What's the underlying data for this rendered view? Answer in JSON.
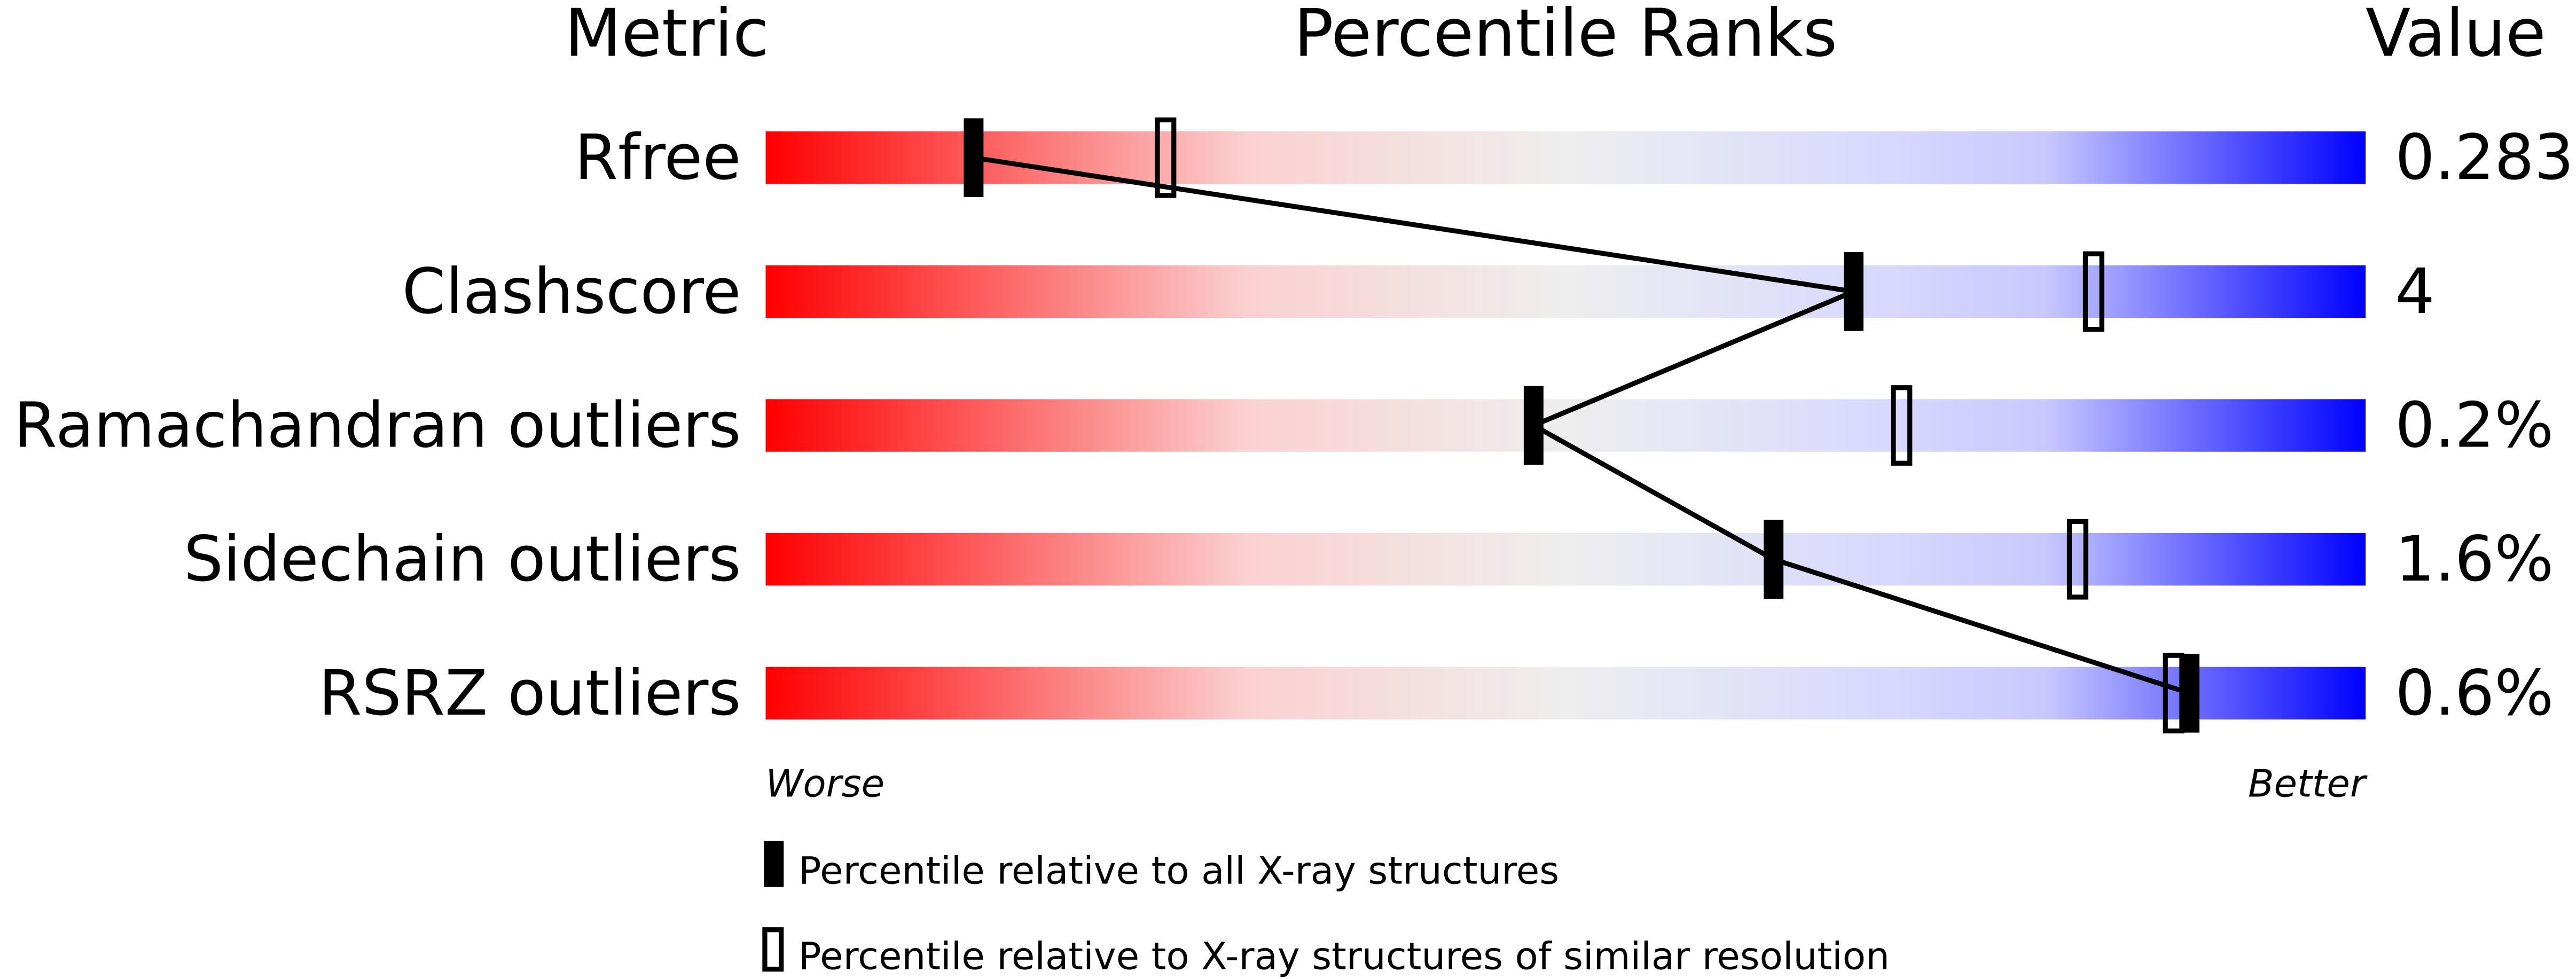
{
  "chart_data": {
    "type": "percentile-bar",
    "headers": {
      "metric": "Metric",
      "ranks": "Percentile Ranks",
      "value": "Value"
    },
    "xlim": [
      0,
      100
    ],
    "axis_labels": {
      "left": "Worse",
      "right": "Better"
    },
    "gradient_colors": [
      "#ff0000",
      "#eeeeee",
      "#d8d8ff",
      "#0000ff"
    ],
    "rows": [
      {
        "metric": "Rfree",
        "value": "0.283",
        "percentile_all": 13,
        "percentile_similar": 25
      },
      {
        "metric": "Clashscore",
        "value": "4",
        "percentile_all": 68,
        "percentile_similar": 83
      },
      {
        "metric": "Ramachandran outliers",
        "value": "0.2%",
        "percentile_all": 48,
        "percentile_similar": 71
      },
      {
        "metric": "Sidechain outliers",
        "value": "1.6%",
        "percentile_all": 63,
        "percentile_similar": 82
      },
      {
        "metric": "RSRZ outliers",
        "value": "0.6%",
        "percentile_all": 89,
        "percentile_similar": 88
      }
    ],
    "legend": [
      {
        "marker": "filled",
        "label": "Percentile relative to all X-ray structures"
      },
      {
        "marker": "open",
        "label": "Percentile relative to X-ray structures of similar resolution"
      }
    ]
  }
}
